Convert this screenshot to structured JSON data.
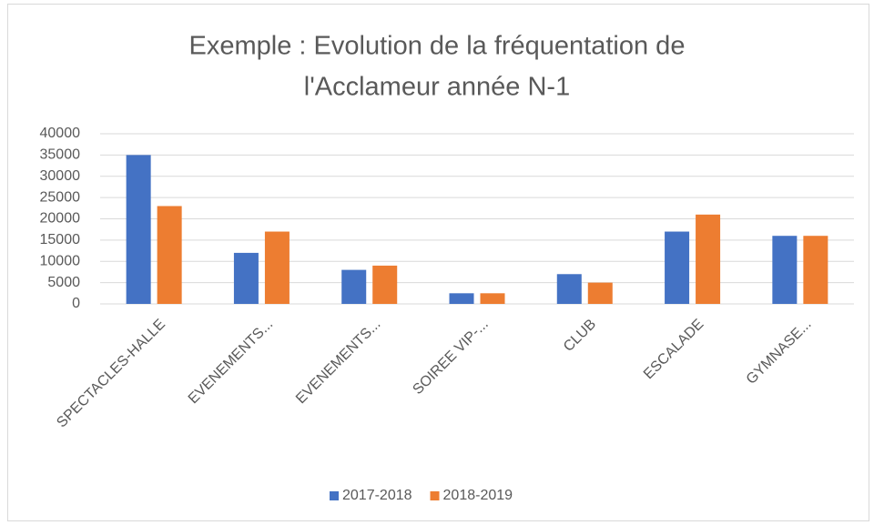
{
  "chart_data": {
    "type": "bar",
    "title": [
      "Exemple : Evolution de la fréquentation de",
      "l'Acclameur année N-1"
    ],
    "categories": [
      "SPECTACLES-HALLE",
      "EVENEMENTS...",
      "EVENEMENTS...",
      "SOIREE VIP-...",
      "CLUB",
      "ESCALADE",
      "GYMNASE..."
    ],
    "series": [
      {
        "name": "2017-2018",
        "color": "#4472c4",
        "values": [
          35000,
          12000,
          8000,
          2500,
          7000,
          17000,
          16000
        ]
      },
      {
        "name": "2018-2019",
        "color": "#ed7d31",
        "values": [
          23000,
          17000,
          9000,
          2500,
          5000,
          21000,
          16000
        ]
      }
    ],
    "ylim": [
      0,
      40000
    ],
    "yticks": [
      0,
      5000,
      10000,
      15000,
      20000,
      25000,
      30000,
      35000,
      40000
    ],
    "grid": true,
    "legend": "bottom"
  }
}
